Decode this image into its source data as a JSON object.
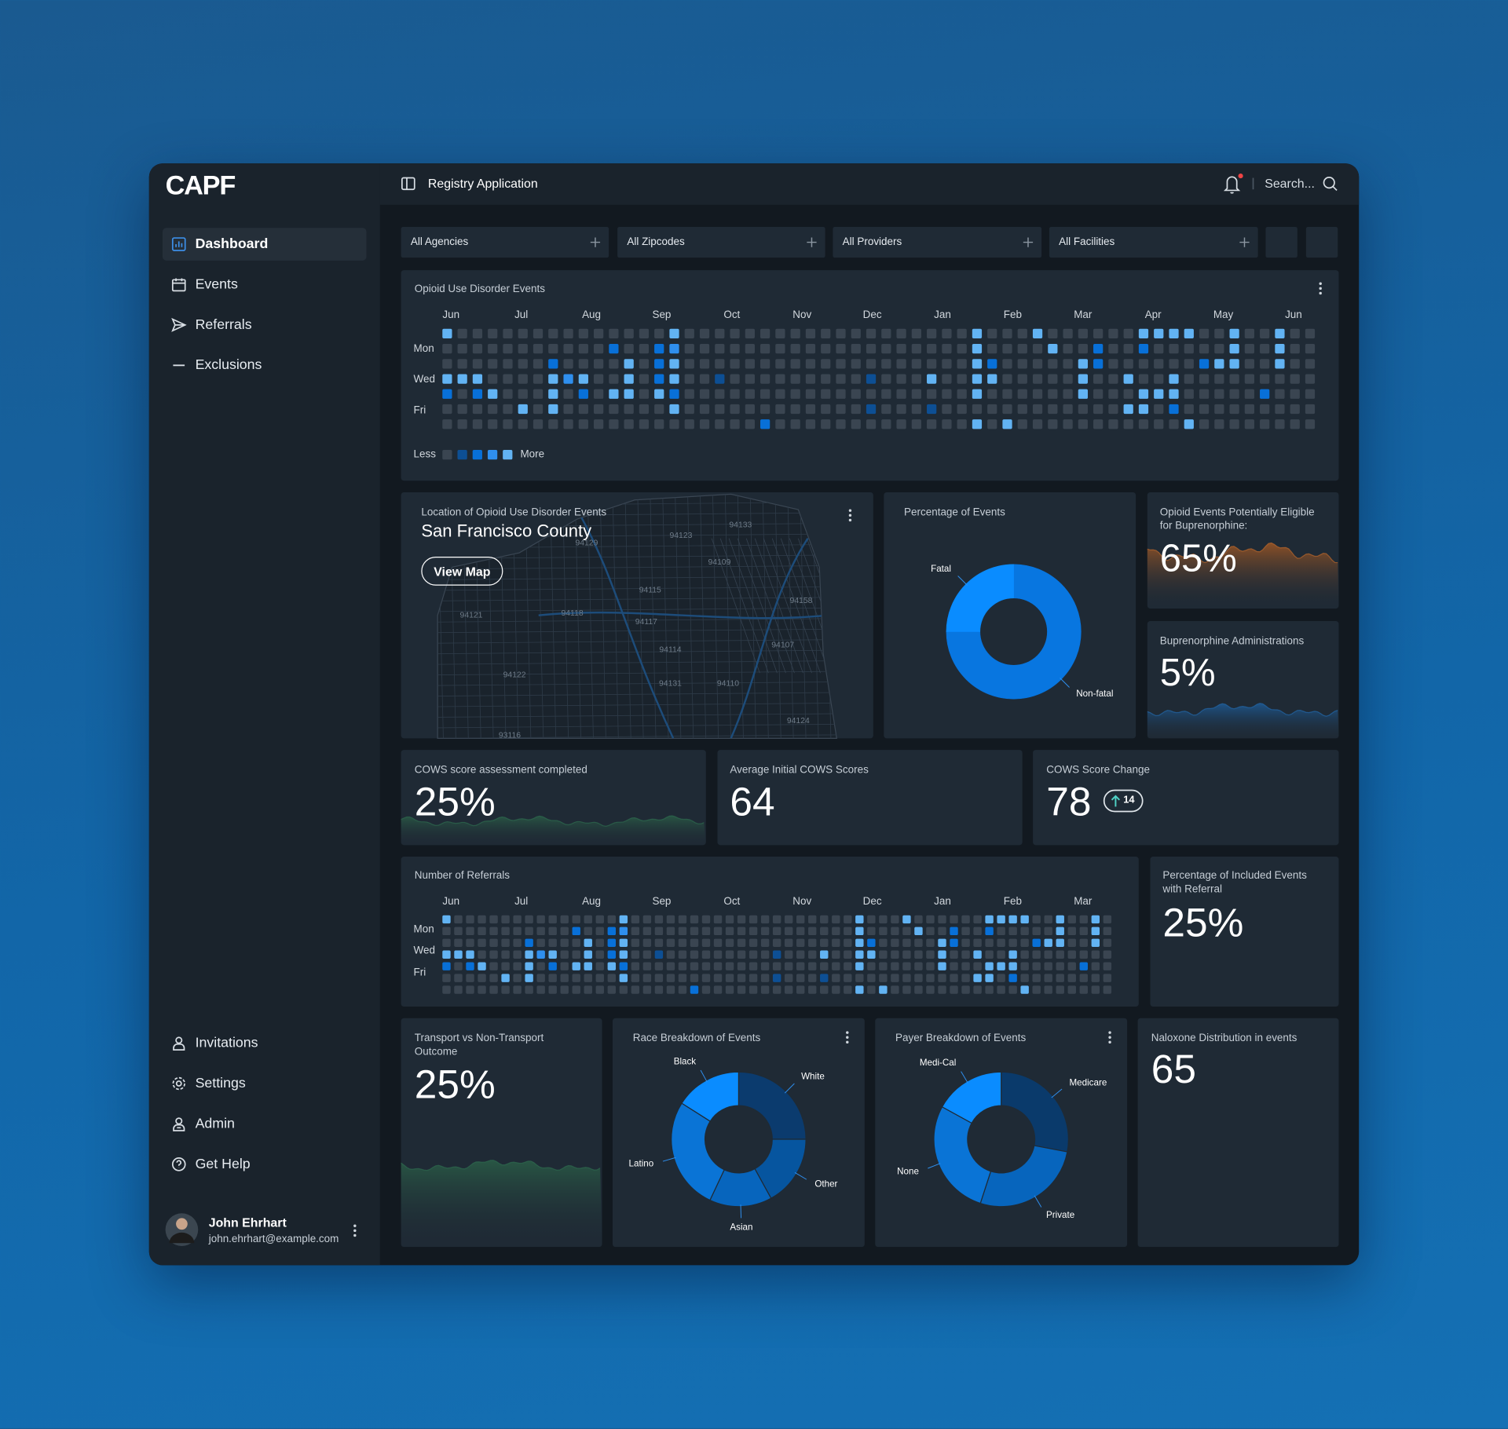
{
  "sidebar": {
    "logo": "CAPF",
    "nav": [
      "Dashboard",
      "Events",
      "Referrals",
      "Exclusions"
    ],
    "footer_nav": [
      "Invitations",
      "Settings",
      "Admin",
      "Get Help"
    ],
    "user": {
      "name": "John Ehrhart",
      "email": "john.ehrhart@example.com"
    }
  },
  "topbar": {
    "title": "Registry Application",
    "search": "Search..."
  },
  "filters": [
    "All Agencies",
    "All Zipcodes",
    "All Providers",
    "All Facilities"
  ],
  "events": {
    "title": "Opioid Use Disorder Events",
    "months": [
      "Jun",
      "Jul",
      "Aug",
      "Sep",
      "Oct",
      "Nov",
      "Dec",
      "Jan",
      "Feb",
      "Mar",
      "Apr",
      "May",
      "Jun"
    ],
    "days": [
      "Mon",
      "Wed",
      "Fri"
    ],
    "legend": {
      "less": "Less",
      "more": "More"
    },
    "colors": [
      "#3a4551",
      "#0d4f94",
      "#0870d8",
      "#2f8fee",
      "#62b3f3"
    ],
    "cells": [
      [
        4,
        0,
        0,
        0,
        0,
        0,
        0,
        0,
        0,
        0,
        0,
        0,
        0,
        0,
        0,
        4,
        0,
        0,
        0,
        0,
        0,
        0,
        0,
        0,
        0,
        0,
        0,
        0,
        0,
        0,
        0,
        0,
        0,
        0,
        0,
        4,
        0,
        0,
        0,
        4,
        0,
        0,
        0,
        0,
        0,
        0,
        4,
        4,
        4,
        4,
        0,
        0,
        4,
        0,
        0,
        4,
        0,
        0
      ],
      [
        0,
        0,
        0,
        0,
        0,
        0,
        0,
        0,
        0,
        0,
        0,
        2,
        0,
        0,
        2,
        3,
        0,
        0,
        0,
        0,
        0,
        0,
        0,
        0,
        0,
        0,
        0,
        0,
        0,
        0,
        0,
        0,
        0,
        0,
        0,
        4,
        0,
        0,
        0,
        0,
        4,
        0,
        0,
        2,
        0,
        0,
        2,
        0,
        0,
        0,
        0,
        0,
        4,
        0,
        0,
        4,
        0,
        0
      ],
      [
        0,
        0,
        0,
        0,
        0,
        0,
        0,
        2,
        0,
        0,
        0,
        0,
        4,
        0,
        2,
        4,
        0,
        0,
        0,
        0,
        0,
        0,
        0,
        0,
        0,
        0,
        0,
        0,
        0,
        0,
        0,
        0,
        0,
        0,
        0,
        4,
        2,
        0,
        0,
        0,
        0,
        0,
        4,
        2,
        0,
        0,
        0,
        0,
        0,
        0,
        2,
        4,
        4,
        0,
        0,
        4,
        0,
        0
      ],
      [
        4,
        4,
        4,
        0,
        0,
        0,
        0,
        4,
        3,
        4,
        0,
        0,
        4,
        0,
        2,
        4,
        0,
        0,
        1,
        0,
        0,
        0,
        0,
        0,
        0,
        0,
        0,
        0,
        1,
        0,
        0,
        0,
        4,
        0,
        0,
        4,
        4,
        0,
        0,
        0,
        0,
        0,
        4,
        0,
        0,
        4,
        0,
        0,
        4,
        0,
        0,
        0,
        0,
        0,
        0,
        0,
        0,
        0
      ],
      [
        2,
        0,
        2,
        4,
        0,
        0,
        0,
        4,
        0,
        2,
        0,
        4,
        4,
        0,
        4,
        2,
        0,
        0,
        0,
        0,
        0,
        0,
        0,
        0,
        0,
        0,
        0,
        0,
        0,
        0,
        0,
        0,
        0,
        0,
        0,
        4,
        0,
        0,
        0,
        0,
        0,
        0,
        4,
        0,
        0,
        0,
        4,
        4,
        4,
        0,
        0,
        0,
        0,
        0,
        2,
        0,
        0,
        0
      ],
      [
        0,
        0,
        0,
        0,
        0,
        4,
        0,
        4,
        0,
        0,
        0,
        0,
        0,
        0,
        0,
        4,
        0,
        0,
        0,
        0,
        0,
        0,
        0,
        0,
        0,
        0,
        0,
        0,
        1,
        0,
        0,
        0,
        1,
        0,
        0,
        0,
        0,
        0,
        0,
        0,
        0,
        0,
        0,
        0,
        0,
        4,
        4,
        0,
        2,
        0,
        0,
        0,
        0,
        0,
        0,
        0,
        0,
        0
      ],
      [
        0,
        0,
        0,
        0,
        0,
        0,
        0,
        0,
        0,
        0,
        0,
        0,
        0,
        0,
        0,
        0,
        0,
        0,
        0,
        0,
        0,
        2,
        0,
        0,
        0,
        0,
        0,
        0,
        0,
        0,
        0,
        0,
        0,
        0,
        0,
        4,
        0,
        4,
        0,
        0,
        0,
        0,
        0,
        0,
        0,
        0,
        0,
        0,
        0,
        4,
        0,
        0,
        0,
        0,
        0,
        0,
        0,
        0
      ]
    ]
  },
  "map": {
    "title": "Location of Opioid Use Disorder Events",
    "region": "San Francisco County",
    "button": "View Map",
    "zips": [
      "94123",
      "94133",
      "94129",
      "94109",
      "94115",
      "94158",
      "94118",
      "94121",
      "94117",
      "94107",
      "94114",
      "94122",
      "94131",
      "94110",
      "94124",
      "93116"
    ]
  },
  "event_share": {
    "title": "Percentage of Events",
    "labels": [
      "Non-fatal",
      "Fatal"
    ],
    "values": [
      75,
      25
    ],
    "colors": [
      "#0876e0",
      "#0a8cff"
    ]
  },
  "eligible": {
    "title": "Opioid Events Potentially Eligible for Buprenorphine:",
    "value": "65%"
  },
  "buprenorphine": {
    "title": "Buprenorphine Administrations",
    "value": "5%"
  },
  "cows_completed": {
    "title": "COWS score assessment completed",
    "value": "25%"
  },
  "cows_initial": {
    "title": "Average Initial COWS Scores",
    "value": "64"
  },
  "cows_change": {
    "title": "COWS Score Change",
    "value": "78",
    "change": "14"
  },
  "referrals": {
    "title": "Number of Referrals",
    "months": [
      "Jun",
      "Jul",
      "Aug",
      "Sep",
      "Oct",
      "Nov",
      "Dec",
      "Jan",
      "Feb",
      "Mar"
    ],
    "days": [
      "Mon",
      "Wed",
      "Fri"
    ],
    "colors": [
      "#3a4551",
      "#0d4f94",
      "#0870d8",
      "#2f8fee",
      "#62b3f3"
    ],
    "cells": [
      [
        4,
        0,
        0,
        0,
        0,
        0,
        0,
        0,
        0,
        0,
        0,
        0,
        0,
        0,
        0,
        4,
        0,
        0,
        0,
        0,
        0,
        0,
        0,
        0,
        0,
        0,
        0,
        0,
        0,
        0,
        0,
        0,
        0,
        0,
        0,
        4,
        0,
        0,
        0,
        4,
        0,
        0,
        0,
        0,
        0,
        0,
        4,
        4,
        4,
        4,
        0,
        0,
        4,
        0,
        0,
        4,
        0
      ],
      [
        0,
        0,
        0,
        0,
        0,
        0,
        0,
        0,
        0,
        0,
        0,
        2,
        0,
        0,
        2,
        3,
        0,
        0,
        0,
        0,
        0,
        0,
        0,
        0,
        0,
        0,
        0,
        0,
        0,
        0,
        0,
        0,
        0,
        0,
        0,
        4,
        0,
        0,
        0,
        0,
        4,
        0,
        0,
        2,
        0,
        0,
        2,
        0,
        0,
        0,
        0,
        0,
        4,
        0,
        0,
        4,
        0
      ],
      [
        0,
        0,
        0,
        0,
        0,
        0,
        0,
        2,
        0,
        0,
        0,
        0,
        4,
        0,
        2,
        4,
        0,
        0,
        0,
        0,
        0,
        0,
        0,
        0,
        0,
        0,
        0,
        0,
        0,
        0,
        0,
        0,
        0,
        0,
        0,
        4,
        2,
        0,
        0,
        0,
        0,
        0,
        4,
        2,
        0,
        0,
        0,
        0,
        0,
        0,
        2,
        4,
        4,
        0,
        0,
        4,
        0
      ],
      [
        4,
        4,
        4,
        0,
        0,
        0,
        0,
        4,
        3,
        4,
        0,
        0,
        4,
        0,
        2,
        4,
        0,
        0,
        1,
        0,
        0,
        0,
        0,
        0,
        0,
        0,
        0,
        0,
        1,
        0,
        0,
        0,
        4,
        0,
        0,
        4,
        4,
        0,
        0,
        0,
        0,
        0,
        4,
        0,
        0,
        4,
        0,
        0,
        4,
        0,
        0,
        0,
        0,
        0,
        0,
        0,
        0
      ],
      [
        2,
        0,
        2,
        4,
        0,
        0,
        0,
        4,
        0,
        2,
        0,
        4,
        4,
        0,
        4,
        2,
        0,
        0,
        0,
        0,
        0,
        0,
        0,
        0,
        0,
        0,
        0,
        0,
        0,
        0,
        0,
        0,
        0,
        0,
        0,
        4,
        0,
        0,
        0,
        0,
        0,
        0,
        4,
        0,
        0,
        0,
        4,
        4,
        4,
        0,
        0,
        0,
        0,
        0,
        2,
        0,
        0
      ],
      [
        0,
        0,
        0,
        0,
        0,
        4,
        0,
        4,
        0,
        0,
        0,
        0,
        0,
        0,
        0,
        4,
        0,
        0,
        0,
        0,
        0,
        0,
        0,
        0,
        0,
        0,
        0,
        0,
        1,
        0,
        0,
        0,
        1,
        0,
        0,
        0,
        0,
        0,
        0,
        0,
        0,
        0,
        0,
        0,
        0,
        4,
        4,
        0,
        2,
        0,
        0,
        0,
        0,
        0,
        0,
        0,
        0
      ],
      [
        0,
        0,
        0,
        0,
        0,
        0,
        0,
        0,
        0,
        0,
        0,
        0,
        0,
        0,
        0,
        0,
        0,
        0,
        0,
        0,
        0,
        2,
        0,
        0,
        0,
        0,
        0,
        0,
        0,
        0,
        0,
        0,
        0,
        0,
        0,
        4,
        0,
        4,
        0,
        0,
        0,
        0,
        0,
        0,
        0,
        0,
        0,
        0,
        0,
        4,
        0,
        0,
        0,
        0,
        0,
        0,
        0
      ]
    ]
  },
  "included": {
    "title": "Percentage of Included Events with Referral",
    "value": "25%"
  },
  "transport": {
    "title": "Transport vs Non-Transport Outcome",
    "value": "25%"
  },
  "race": {
    "title": "Race Breakdown of Events",
    "labels": [
      "White",
      "Other",
      "Asian",
      "Latino",
      "Black"
    ],
    "values": [
      25,
      17,
      15,
      27,
      16
    ],
    "colors": [
      "#0b3b6e",
      "#06559f",
      "#0765bd",
      "#0a74d6",
      "#0a8cff"
    ]
  },
  "payer": {
    "title": "Payer Breakdown of Events",
    "labels": [
      "Medicare",
      "Private",
      "None",
      "Medi-Cal"
    ],
    "values": [
      28,
      27,
      28,
      17
    ],
    "colors": [
      "#0a3a6b",
      "#0765bd",
      "#0a74d6",
      "#0a8cff"
    ]
  },
  "naloxone": {
    "title": "Naloxone Distribution in events",
    "value": "65"
  }
}
